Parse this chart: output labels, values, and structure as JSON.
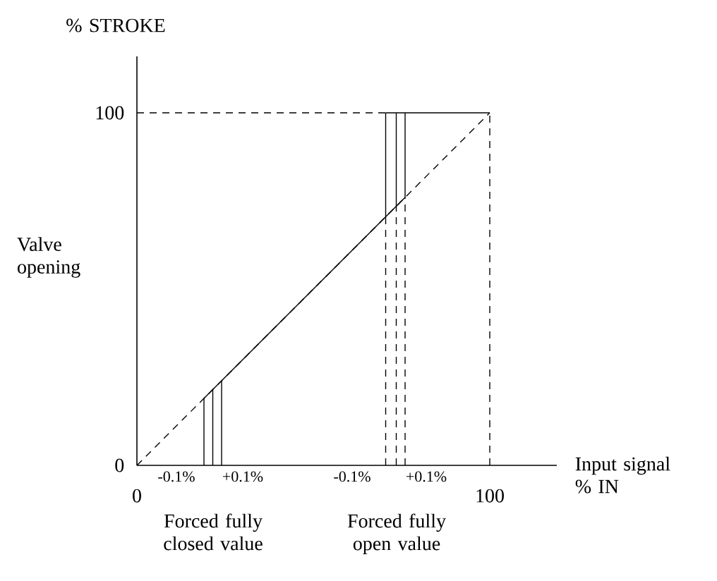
{
  "chart_data": {
    "type": "line",
    "ylabel": "Valve opening",
    "xlabel": "Input signal % IN",
    "xlim": [
      0,
      119
    ],
    "ylim": [
      0,
      116
    ],
    "xticks": [
      0,
      100
    ],
    "yticks": [
      0,
      100
    ],
    "grid": false,
    "series": [
      {
        "color": "#000000",
        "line_style": "dashed",
        "x": [
          0,
          100
        ],
        "values": [
          0,
          100
        ]
      },
      {
        "color": "#000000",
        "line_style": "solid",
        "x": [
          19,
          76
        ],
        "values": [
          19,
          76
        ]
      },
      {
        "color": "#000000",
        "line_style": "solid",
        "x": [
          70.5,
          100
        ],
        "values": [
          100,
          100
        ]
      },
      {
        "color": "#000000",
        "line_style": "dashed",
        "x": [
          0,
          70.5
        ],
        "values": [
          100,
          100
        ]
      },
      {
        "color": "#000000",
        "line_style": "dashed",
        "x": [
          100,
          100
        ],
        "values": [
          0,
          100
        ]
      },
      {
        "color": "#000000",
        "line_style": "solid",
        "x": [
          19,
          19
        ],
        "values": [
          0,
          19
        ]
      },
      {
        "color": "#000000",
        "line_style": "solid",
        "x": [
          21.5,
          21.5
        ],
        "values": [
          0,
          21.5
        ]
      },
      {
        "color": "#000000",
        "line_style": "solid",
        "x": [
          24,
          24
        ],
        "values": [
          0,
          24
        ]
      },
      {
        "color": "#000000",
        "line_style": "dashed",
        "x": [
          70.5,
          70.5
        ],
        "values": [
          0,
          70.5
        ]
      },
      {
        "color": "#000000",
        "line_style": "dashed",
        "x": [
          73.5,
          73.5
        ],
        "values": [
          0,
          73.5
        ]
      },
      {
        "color": "#000000",
        "line_style": "dashed",
        "x": [
          76,
          76
        ],
        "values": [
          0,
          76
        ]
      },
      {
        "color": "#000000",
        "line_style": "solid",
        "x": [
          70.5,
          70.5
        ],
        "values": [
          70.5,
          100
        ]
      },
      {
        "color": "#000000",
        "line_style": "solid",
        "x": [
          73.5,
          73.5
        ],
        "values": [
          73.5,
          100
        ]
      },
      {
        "color": "#000000",
        "line_style": "solid",
        "x": [
          76,
          76
        ],
        "values": [
          76,
          100
        ]
      }
    ],
    "annotations": [
      "% STROKE",
      "-0.1%",
      "+0.1%",
      "-0.1%",
      "+0.1%",
      "Forced fully closed value",
      "Forced fully open value"
    ]
  }
}
